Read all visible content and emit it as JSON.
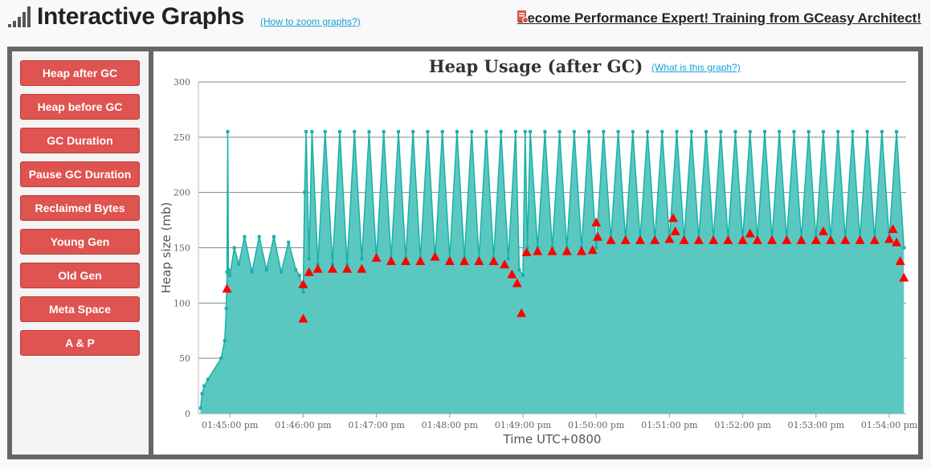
{
  "header": {
    "title": "Interactive Graphs",
    "zoom_link": "(How to zoom graphs?)",
    "promo_link": "Become Performance Expert! Training from GCeasy Architect!"
  },
  "sidebar": {
    "items": [
      {
        "label": "Heap after GC"
      },
      {
        "label": "Heap before GC"
      },
      {
        "label": "GC Duration"
      },
      {
        "label": "Pause GC Duration"
      },
      {
        "label": "Reclaimed Bytes"
      },
      {
        "label": "Young Gen"
      },
      {
        "label": "Old Gen"
      },
      {
        "label": "Meta Space"
      },
      {
        "label": "A & P"
      }
    ]
  },
  "colors": {
    "button": "#df5350",
    "heap_line": "#1ab0a6",
    "heap_fill": "#5ac8c1",
    "full_gc": "#ff0000",
    "link": "#18a0d8"
  },
  "chart_data": {
    "type": "area",
    "title": "Heap Usage (after GC)",
    "help_link": "(What is this graph?)",
    "xlabel": "Time UTC+0800",
    "ylabel": "Heap size (mb)",
    "ylim": [
      0,
      300
    ],
    "y_ticks": [
      0,
      50,
      100,
      150,
      200,
      250,
      300
    ],
    "x_ticks": [
      "01:45:00 pm",
      "01:46:00 pm",
      "01:47:00 pm",
      "01:48:00 pm",
      "01:49:00 pm",
      "01:50:00 pm",
      "01:51:00 pm",
      "01:52:00 pm",
      "01:53:00 pm",
      "01:54:00 pm"
    ],
    "x_tick_minutes": [
      45,
      46,
      47,
      48,
      49,
      50,
      51,
      52,
      53,
      54
    ],
    "xlim_minutes": [
      44.57,
      54.23
    ],
    "grid": true,
    "series": [
      {
        "kind": "area",
        "values": [
          [
            44.6,
            5
          ],
          [
            44.62,
            18
          ],
          [
            44.65,
            25
          ],
          [
            44.7,
            31
          ],
          [
            44.88,
            50
          ],
          [
            44.93,
            66
          ],
          [
            44.95,
            95
          ],
          [
            44.96,
            128
          ],
          [
            44.97,
            255
          ],
          [
            44.98,
            130
          ],
          [
            45.0,
            125
          ],
          [
            45.06,
            150
          ],
          [
            45.12,
            135
          ],
          [
            45.2,
            160
          ],
          [
            45.3,
            128
          ],
          [
            45.4,
            160
          ],
          [
            45.5,
            130
          ],
          [
            45.6,
            160
          ],
          [
            45.7,
            128
          ],
          [
            45.8,
            155
          ],
          [
            45.9,
            130
          ],
          [
            45.95,
            125
          ],
          [
            46.0,
            110
          ],
          [
            46.02,
            200
          ],
          [
            46.04,
            255
          ],
          [
            46.08,
            140
          ],
          [
            46.12,
            255
          ],
          [
            46.2,
            135
          ],
          [
            46.3,
            255
          ],
          [
            46.4,
            135
          ],
          [
            46.5,
            255
          ],
          [
            46.6,
            135
          ],
          [
            46.7,
            255
          ],
          [
            46.8,
            140
          ],
          [
            46.9,
            255
          ],
          [
            47.0,
            140
          ],
          [
            47.1,
            255
          ],
          [
            47.2,
            140
          ],
          [
            47.3,
            255
          ],
          [
            47.4,
            140
          ],
          [
            47.5,
            255
          ],
          [
            47.6,
            140
          ],
          [
            47.7,
            255
          ],
          [
            47.8,
            140
          ],
          [
            47.9,
            255
          ],
          [
            48.0,
            140
          ],
          [
            48.1,
            255
          ],
          [
            48.2,
            140
          ],
          [
            48.3,
            255
          ],
          [
            48.4,
            140
          ],
          [
            48.5,
            255
          ],
          [
            48.6,
            140
          ],
          [
            48.7,
            255
          ],
          [
            48.8,
            140
          ],
          [
            48.9,
            255
          ],
          [
            48.95,
            130
          ],
          [
            49.0,
            125
          ],
          [
            49.03,
            255
          ],
          [
            49.06,
            150
          ],
          [
            49.1,
            255
          ],
          [
            49.2,
            150
          ],
          [
            49.3,
            255
          ],
          [
            49.4,
            150
          ],
          [
            49.5,
            255
          ],
          [
            49.6,
            150
          ],
          [
            49.7,
            255
          ],
          [
            49.8,
            150
          ],
          [
            49.9,
            255
          ],
          [
            50.0,
            150
          ],
          [
            50.1,
            255
          ],
          [
            50.2,
            158
          ],
          [
            50.3,
            255
          ],
          [
            50.4,
            158
          ],
          [
            50.5,
            255
          ],
          [
            50.6,
            158
          ],
          [
            50.7,
            255
          ],
          [
            50.8,
            158
          ],
          [
            50.9,
            255
          ],
          [
            51.0,
            158
          ],
          [
            51.1,
            255
          ],
          [
            51.2,
            158
          ],
          [
            51.3,
            255
          ],
          [
            51.4,
            158
          ],
          [
            51.5,
            255
          ],
          [
            51.6,
            158
          ],
          [
            51.7,
            255
          ],
          [
            51.8,
            158
          ],
          [
            51.9,
            255
          ],
          [
            52.0,
            158
          ],
          [
            52.1,
            255
          ],
          [
            52.2,
            158
          ],
          [
            52.3,
            255
          ],
          [
            52.4,
            158
          ],
          [
            52.5,
            255
          ],
          [
            52.6,
            158
          ],
          [
            52.7,
            255
          ],
          [
            52.8,
            158
          ],
          [
            52.9,
            255
          ],
          [
            53.0,
            158
          ],
          [
            53.1,
            255
          ],
          [
            53.2,
            158
          ],
          [
            53.3,
            255
          ],
          [
            53.4,
            158
          ],
          [
            53.5,
            255
          ],
          [
            53.6,
            158
          ],
          [
            53.7,
            255
          ],
          [
            53.8,
            158
          ],
          [
            53.9,
            255
          ],
          [
            54.0,
            158
          ],
          [
            54.1,
            255
          ],
          [
            54.2,
            150
          ]
        ]
      },
      {
        "kind": "markers",
        "values": [
          [
            44.96,
            113
          ],
          [
            46.0,
            117
          ],
          [
            46.0,
            86
          ],
          [
            46.08,
            128
          ],
          [
            46.2,
            131
          ],
          [
            46.4,
            131
          ],
          [
            46.6,
            131
          ],
          [
            46.8,
            131
          ],
          [
            47.0,
            141
          ],
          [
            47.2,
            138
          ],
          [
            47.4,
            138
          ],
          [
            47.6,
            138
          ],
          [
            47.8,
            142
          ],
          [
            48.0,
            138
          ],
          [
            48.2,
            138
          ],
          [
            48.4,
            138
          ],
          [
            48.6,
            138
          ],
          [
            48.75,
            135
          ],
          [
            48.85,
            126
          ],
          [
            48.92,
            118
          ],
          [
            48.98,
            91
          ],
          [
            49.05,
            146
          ],
          [
            49.2,
            147
          ],
          [
            49.4,
            147
          ],
          [
            49.6,
            147
          ],
          [
            49.8,
            147
          ],
          [
            49.95,
            148
          ],
          [
            50.0,
            173
          ],
          [
            50.02,
            160
          ],
          [
            50.2,
            157
          ],
          [
            50.4,
            157
          ],
          [
            50.6,
            157
          ],
          [
            50.8,
            157
          ],
          [
            51.0,
            158
          ],
          [
            51.05,
            177
          ],
          [
            51.08,
            165
          ],
          [
            51.2,
            157
          ],
          [
            51.4,
            157
          ],
          [
            51.6,
            157
          ],
          [
            51.8,
            157
          ],
          [
            52.0,
            157
          ],
          [
            52.1,
            163
          ],
          [
            52.2,
            157
          ],
          [
            52.4,
            157
          ],
          [
            52.6,
            157
          ],
          [
            52.8,
            157
          ],
          [
            53.0,
            157
          ],
          [
            53.1,
            165
          ],
          [
            53.2,
            157
          ],
          [
            53.4,
            157
          ],
          [
            53.6,
            157
          ],
          [
            53.8,
            157
          ],
          [
            54.0,
            158
          ],
          [
            54.05,
            167
          ],
          [
            54.1,
            155
          ],
          [
            54.15,
            138
          ],
          [
            54.2,
            123
          ]
        ]
      }
    ]
  }
}
